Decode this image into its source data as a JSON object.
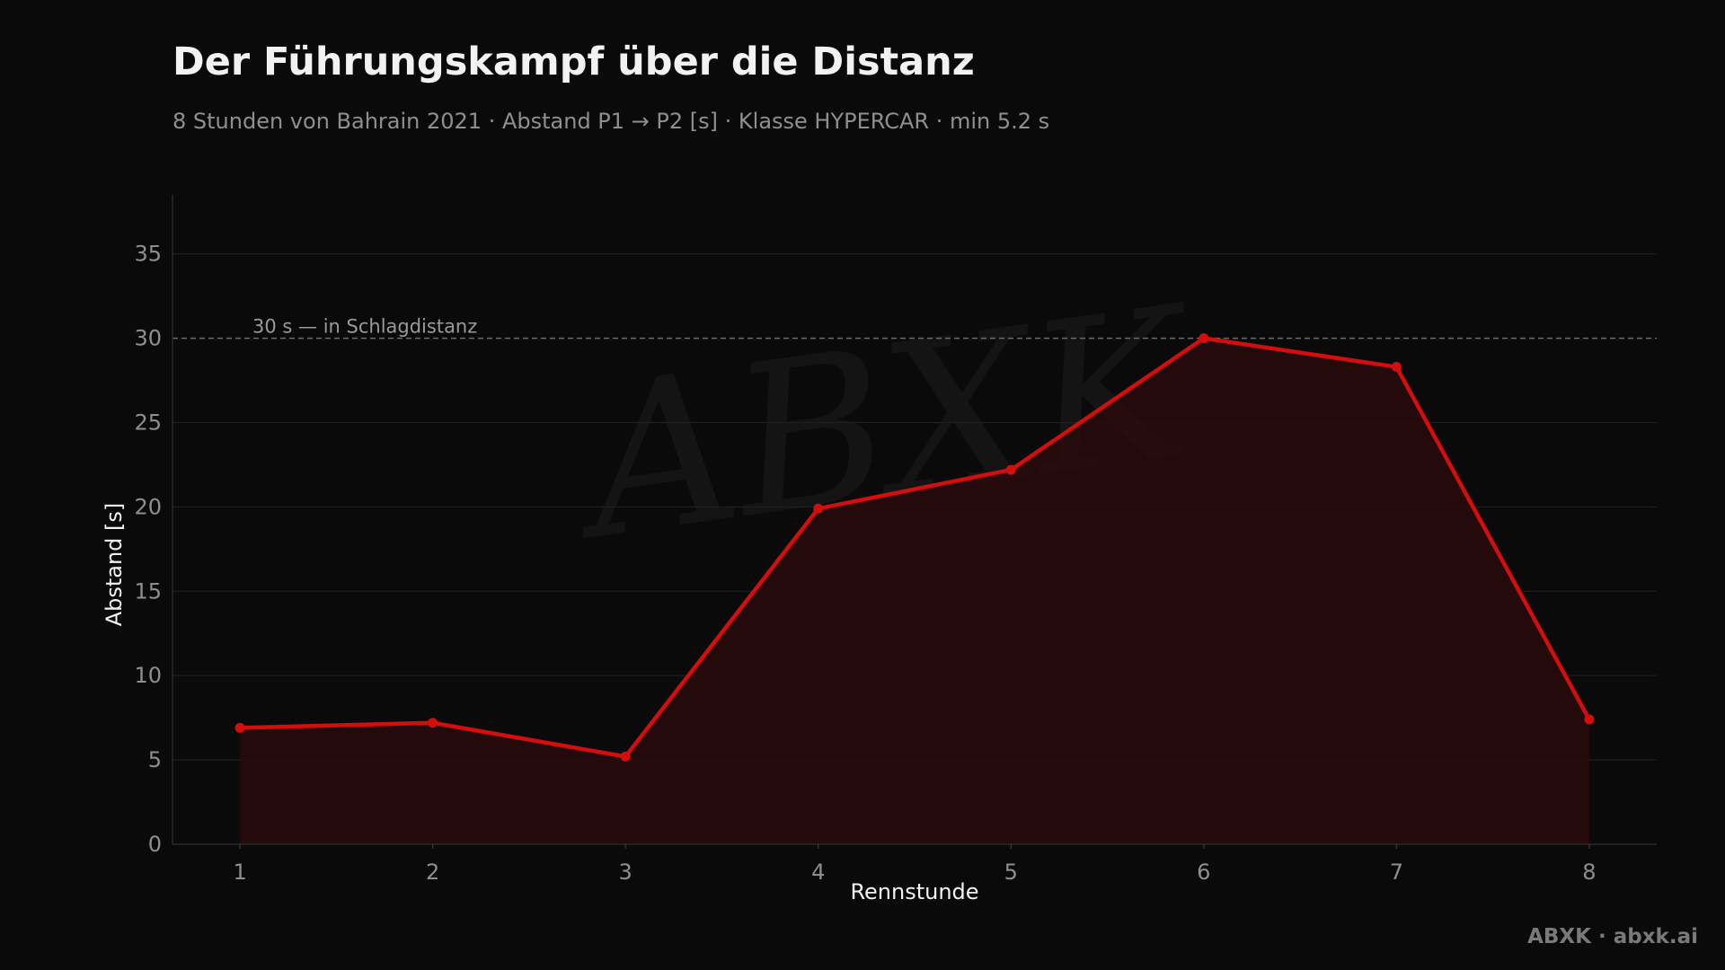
{
  "title": "Der Führungskampf über die Distanz",
  "subtitle": "8 Stunden von Bahrain 2021 · Abstand P1 → P2 [s] · Klasse HYPERCAR · min 5.2 s",
  "footer": "ABXK · abxk.ai",
  "watermark": "ABXK",
  "colors": {
    "background": "#0a0a0a",
    "line": "#d40d0d",
    "fill": "#2a0a0c",
    "grid": "#1f1f1f",
    "reference": "#6b6b6b",
    "text": "#f2f2f2",
    "muted": "#8f8f8f"
  },
  "chart_data": {
    "type": "line",
    "title": "Der Führungskampf über die Distanz",
    "subtitle": "8 Stunden von Bahrain 2021 · Abstand P1 → P2 [s] · Klasse HYPERCAR · min 5.2 s",
    "xlabel": "Rennstunde",
    "ylabel": "Abstand [s]",
    "x": [
      1,
      2,
      3,
      4,
      5,
      6,
      7,
      8
    ],
    "xticks": [
      "1",
      "2",
      "3",
      "4",
      "5",
      "6",
      "7",
      "8"
    ],
    "xlim": [
      0.65,
      8.35
    ],
    "yticks": [
      "0",
      "5",
      "10",
      "15",
      "20",
      "25",
      "30",
      "35"
    ],
    "ylim": [
      0,
      38.5
    ],
    "series": [
      {
        "values": [
          6.9,
          7.2,
          5.2,
          19.9,
          22.2,
          30.0,
          28.3,
          7.4
        ],
        "filled": true,
        "markers": true
      }
    ],
    "reference_line": {
      "y": 30,
      "label": "30 s — in Schlagdistanz",
      "style": "dashed"
    },
    "grid": "horizontal",
    "legend": "none"
  }
}
